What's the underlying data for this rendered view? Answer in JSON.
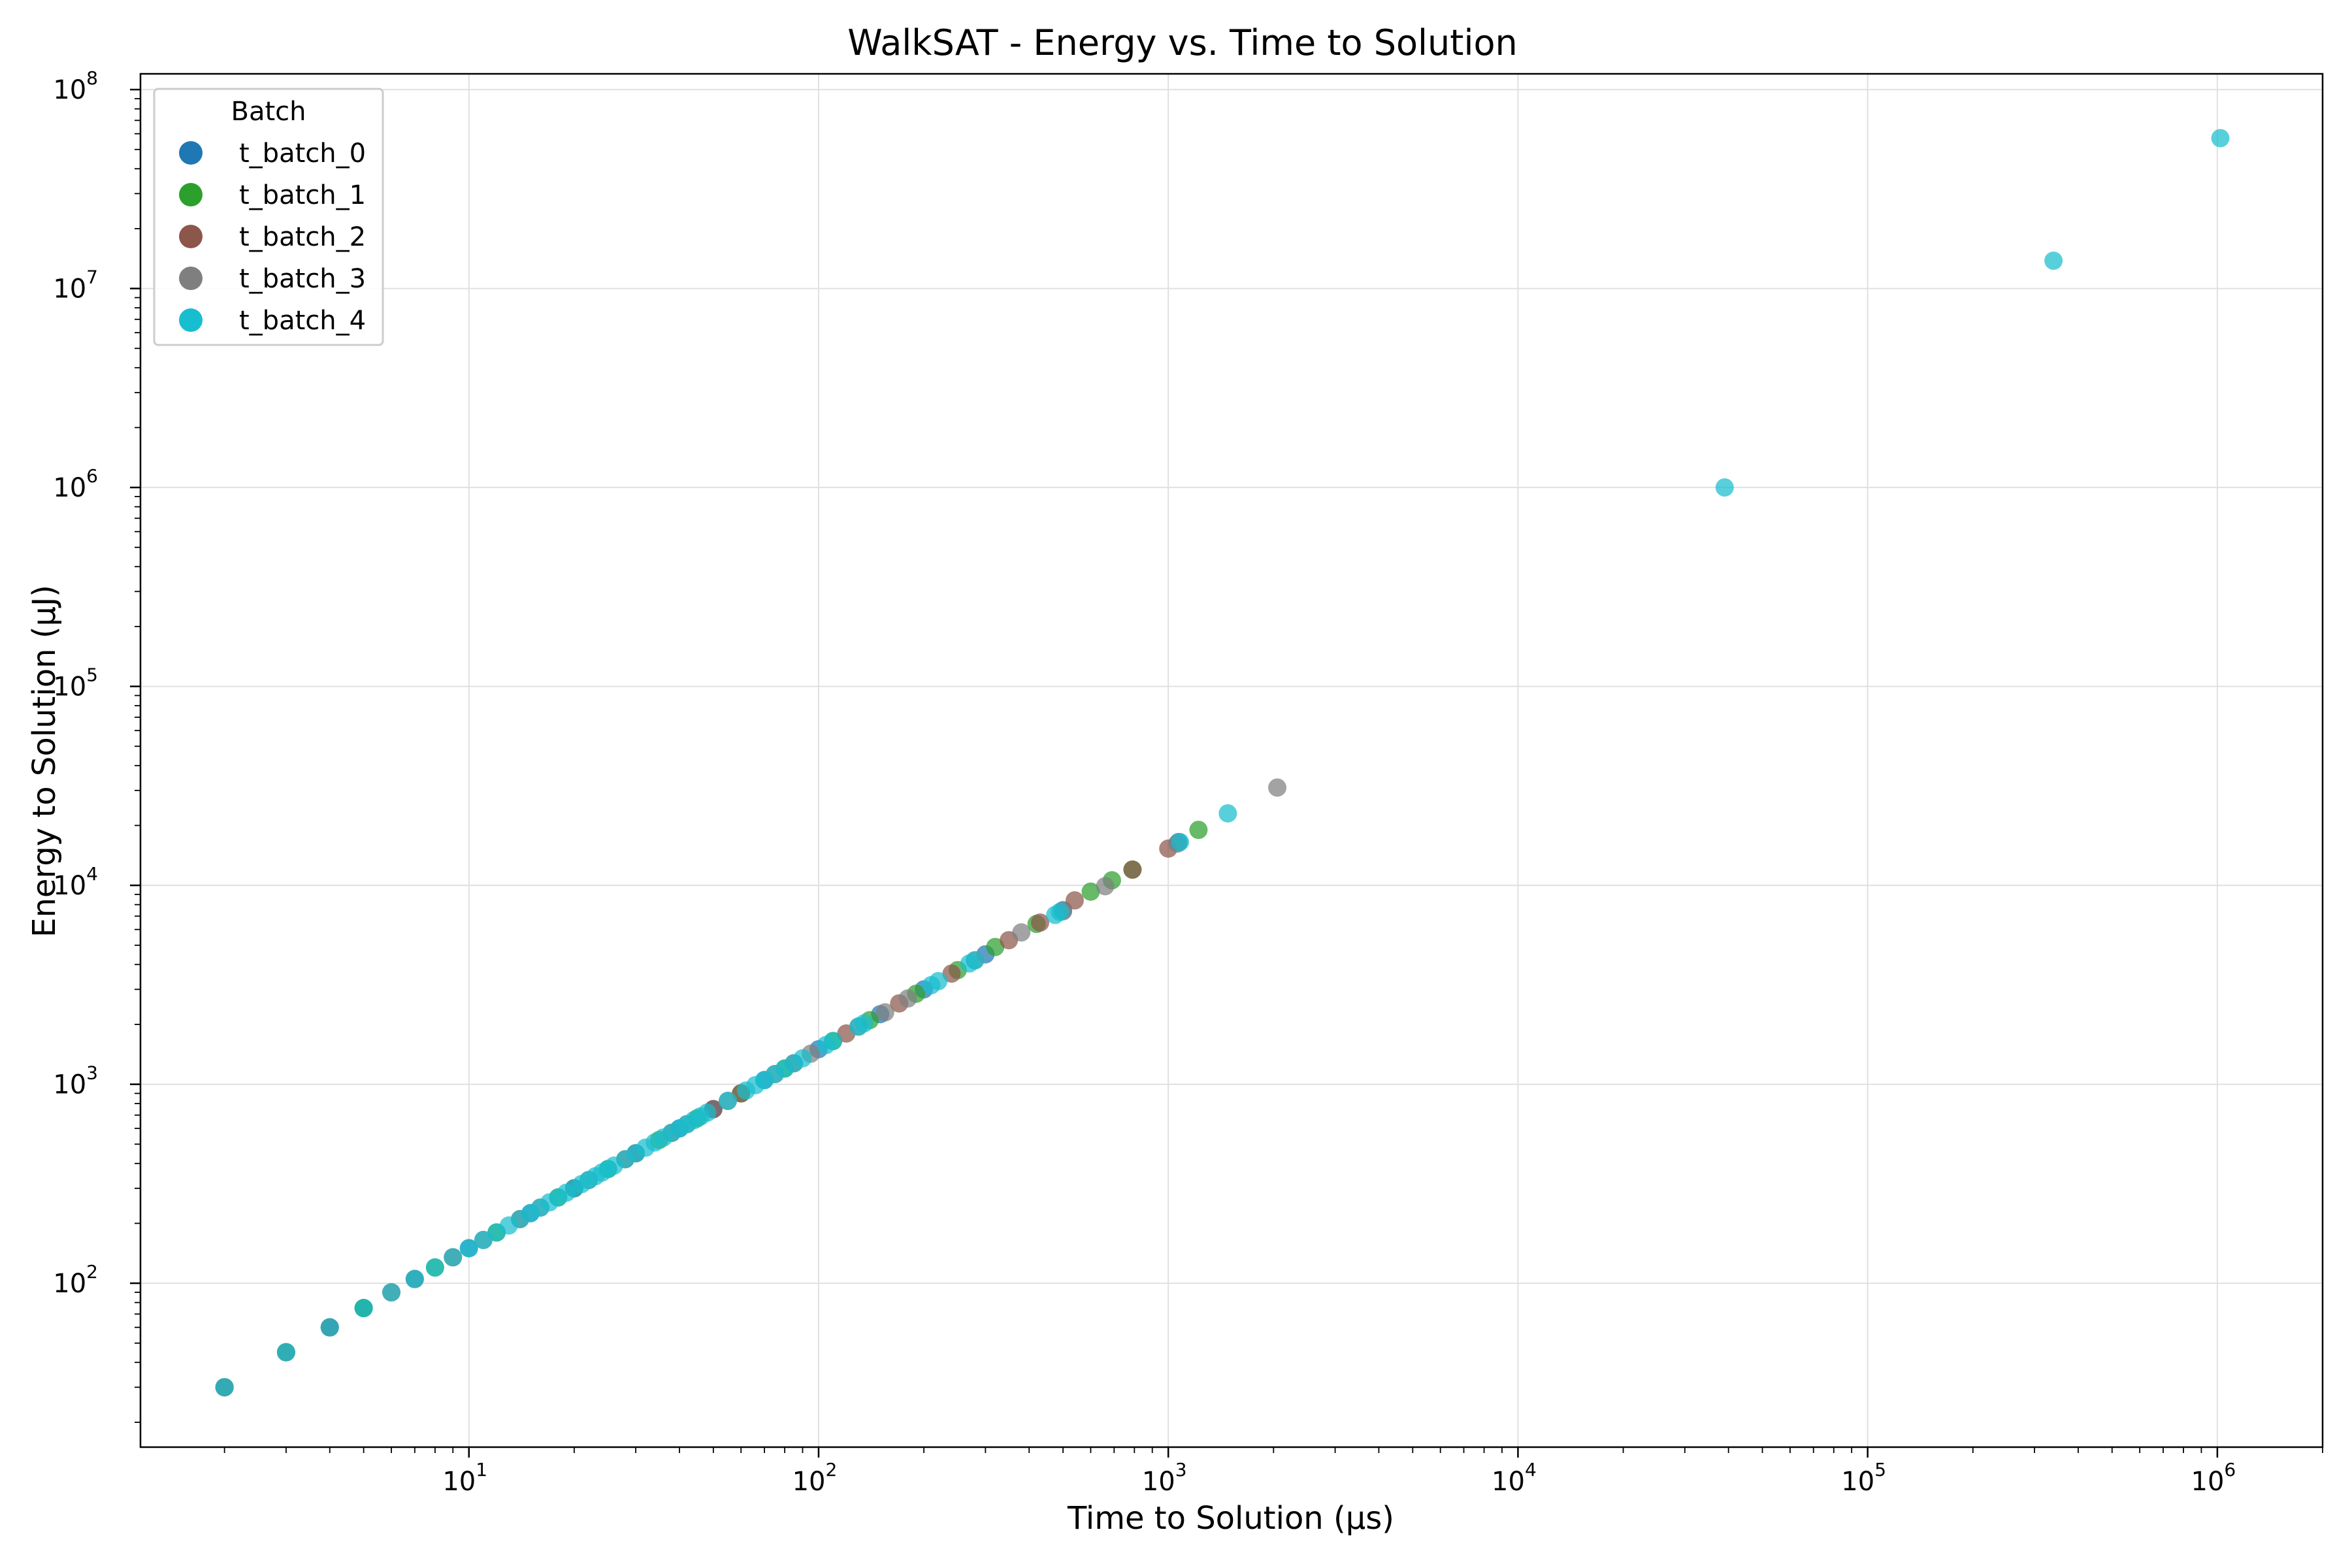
{
  "chart_data": {
    "type": "scatter",
    "title": "WalkSAT - Energy vs. Time to Solution",
    "xlabel": "Time to Solution (µs)",
    "ylabel": "Energy to Solution (µJ)",
    "xscale": "log",
    "yscale": "log",
    "xlim": [
      1.15,
      2000000
    ],
    "ylim": [
      15,
      120000000
    ],
    "x_ticks": [
      {
        "value": 10,
        "base": "10",
        "exp": "1"
      },
      {
        "value": 100,
        "base": "10",
        "exp": "2"
      },
      {
        "value": 1000,
        "base": "10",
        "exp": "3"
      },
      {
        "value": 10000,
        "base": "10",
        "exp": "4"
      },
      {
        "value": 100000,
        "base": "10",
        "exp": "5"
      },
      {
        "value": 1000000,
        "base": "10",
        "exp": "6"
      }
    ],
    "y_ticks": [
      {
        "value": 100,
        "base": "10",
        "exp": "2"
      },
      {
        "value": 1000,
        "base": "10",
        "exp": "3"
      },
      {
        "value": 10000,
        "base": "10",
        "exp": "4"
      },
      {
        "value": 100000,
        "base": "10",
        "exp": "5"
      },
      {
        "value": 1000000,
        "base": "10",
        "exp": "6"
      },
      {
        "value": 10000000,
        "base": "10",
        "exp": "7"
      },
      {
        "value": 100000000,
        "base": "10",
        "exp": "8"
      }
    ],
    "grid": true,
    "legend": {
      "title": "Batch",
      "placement": "top-left"
    },
    "series": [
      {
        "name": "t_batch_0",
        "color": "#1f77b4",
        "points": [
          [
            2,
            30
          ],
          [
            3,
            45
          ],
          [
            4,
            60
          ],
          [
            5,
            75
          ],
          [
            7,
            105
          ],
          [
            10,
            150
          ],
          [
            15,
            225
          ],
          [
            20,
            300
          ],
          [
            30,
            450
          ],
          [
            40,
            600
          ],
          [
            50,
            750
          ],
          [
            70,
            1050
          ],
          [
            100,
            1500
          ],
          [
            150,
            2250
          ],
          [
            200,
            3000
          ],
          [
            300,
            4500
          ],
          [
            500,
            7500
          ],
          [
            1070,
            16500
          ]
        ]
      },
      {
        "name": "t_batch_1",
        "color": "#2ca02c",
        "points": [
          [
            2,
            30
          ],
          [
            3,
            45
          ],
          [
            5,
            75
          ],
          [
            8,
            120
          ],
          [
            12,
            180
          ],
          [
            18,
            270
          ],
          [
            25,
            375
          ],
          [
            35,
            525
          ],
          [
            45,
            675
          ],
          [
            60,
            900
          ],
          [
            80,
            1200
          ],
          [
            110,
            1650
          ],
          [
            140,
            2100
          ],
          [
            190,
            2850
          ],
          [
            250,
            3750
          ],
          [
            320,
            4900
          ],
          [
            420,
            6400
          ],
          [
            600,
            9300
          ],
          [
            690,
            10600
          ],
          [
            790,
            12000
          ],
          [
            1220,
            19000
          ]
        ]
      },
      {
        "name": "t_batch_2",
        "color": "#8c564b",
        "points": [
          [
            2,
            30
          ],
          [
            4,
            60
          ],
          [
            6,
            90
          ],
          [
            9,
            135
          ],
          [
            14,
            210
          ],
          [
            20,
            300
          ],
          [
            28,
            420
          ],
          [
            38,
            570
          ],
          [
            50,
            750
          ],
          [
            60,
            900
          ],
          [
            85,
            1275
          ],
          [
            120,
            1800
          ],
          [
            170,
            2550
          ],
          [
            240,
            3600
          ],
          [
            350,
            5300
          ],
          [
            430,
            6500
          ],
          [
            540,
            8400
          ],
          [
            790,
            12000
          ],
          [
            1000,
            15300
          ]
        ]
      },
      {
        "name": "t_batch_3",
        "color": "#7f7f7f",
        "points": [
          [
            2,
            30
          ],
          [
            3,
            45
          ],
          [
            7,
            105
          ],
          [
            11,
            165
          ],
          [
            16,
            240
          ],
          [
            22,
            330
          ],
          [
            30,
            450
          ],
          [
            42,
            630
          ],
          [
            55,
            825
          ],
          [
            75,
            1125
          ],
          [
            95,
            1425
          ],
          [
            130,
            1950
          ],
          [
            155,
            2300
          ],
          [
            180,
            2700
          ],
          [
            280,
            4200
          ],
          [
            380,
            5800
          ],
          [
            500,
            7400
          ],
          [
            660,
            9900
          ],
          [
            1060,
            16200
          ],
          [
            2050,
            31000
          ]
        ]
      },
      {
        "name": "t_batch_4",
        "color": "#17becf",
        "points": [
          [
            2,
            30
          ],
          [
            3,
            45
          ],
          [
            4,
            60
          ],
          [
            5,
            75
          ],
          [
            6,
            90
          ],
          [
            7,
            105
          ],
          [
            8,
            120
          ],
          [
            9,
            135
          ],
          [
            10,
            150
          ],
          [
            11,
            165
          ],
          [
            12,
            180
          ],
          [
            13,
            195
          ],
          [
            14,
            210
          ],
          [
            15,
            225
          ],
          [
            16,
            240
          ],
          [
            17,
            255
          ],
          [
            18,
            270
          ],
          [
            19,
            285
          ],
          [
            20,
            300
          ],
          [
            21,
            315
          ],
          [
            22,
            330
          ],
          [
            23,
            345
          ],
          [
            24,
            360
          ],
          [
            25,
            375
          ],
          [
            26,
            390
          ],
          [
            28,
            420
          ],
          [
            30,
            450
          ],
          [
            32,
            480
          ],
          [
            34,
            510
          ],
          [
            36,
            540
          ],
          [
            38,
            570
          ],
          [
            40,
            600
          ],
          [
            42,
            630
          ],
          [
            44,
            660
          ],
          [
            46,
            690
          ],
          [
            48,
            720
          ],
          [
            55,
            825
          ],
          [
            62,
            930
          ],
          [
            66,
            990
          ],
          [
            70,
            1050
          ],
          [
            75,
            1125
          ],
          [
            80,
            1200
          ],
          [
            85,
            1275
          ],
          [
            90,
            1350
          ],
          [
            105,
            1575
          ],
          [
            110,
            1650
          ],
          [
            130,
            1950
          ],
          [
            135,
            2025
          ],
          [
            210,
            3150
          ],
          [
            220,
            3300
          ],
          [
            270,
            4050
          ],
          [
            280,
            4200
          ],
          [
            475,
            7100
          ],
          [
            490,
            7350
          ],
          [
            1080,
            16500
          ],
          [
            1480,
            23000
          ],
          [
            39000,
            1000000
          ],
          [
            340000,
            13800000
          ],
          [
            1020000,
            57000000
          ]
        ]
      }
    ]
  }
}
